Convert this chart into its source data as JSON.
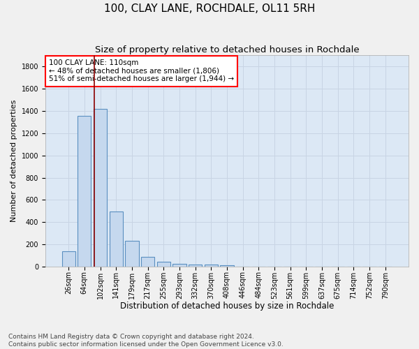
{
  "title": "100, CLAY LANE, ROCHDALE, OL11 5RH",
  "subtitle": "Size of property relative to detached houses in Rochdale",
  "xlabel": "Distribution of detached houses by size in Rochdale",
  "ylabel": "Number of detached properties",
  "categories": [
    "26sqm",
    "64sqm",
    "102sqm",
    "141sqm",
    "179sqm",
    "217sqm",
    "255sqm",
    "293sqm",
    "332sqm",
    "370sqm",
    "408sqm",
    "446sqm",
    "484sqm",
    "523sqm",
    "561sqm",
    "599sqm",
    "637sqm",
    "675sqm",
    "714sqm",
    "752sqm",
    "790sqm"
  ],
  "values": [
    140,
    1355,
    1415,
    495,
    230,
    88,
    47,
    28,
    18,
    18,
    15,
    0,
    0,
    0,
    0,
    0,
    0,
    0,
    0,
    0,
    0
  ],
  "bar_color": "#c5d8ee",
  "bar_edge_color": "#5a8fc0",
  "bar_edge_width": 0.8,
  "grid_color": "#c8d4e4",
  "background_color": "#dce8f5",
  "fig_background_color": "#f0f0f0",
  "red_line_x": 1.62,
  "red_line_color": "#8b0000",
  "annotation_text": "100 CLAY LANE: 110sqm\n← 48% of detached houses are smaller (1,806)\n51% of semi-detached houses are larger (1,944) →",
  "ylim": [
    0,
    1900
  ],
  "yticks": [
    0,
    200,
    400,
    600,
    800,
    1000,
    1200,
    1400,
    1600,
    1800
  ],
  "footer_text": "Contains HM Land Registry data © Crown copyright and database right 2024.\nContains public sector information licensed under the Open Government Licence v3.0.",
  "title_fontsize": 11,
  "subtitle_fontsize": 9.5,
  "xlabel_fontsize": 8.5,
  "ylabel_fontsize": 8,
  "tick_fontsize": 7,
  "annotation_fontsize": 7.5,
  "footer_fontsize": 6.5
}
